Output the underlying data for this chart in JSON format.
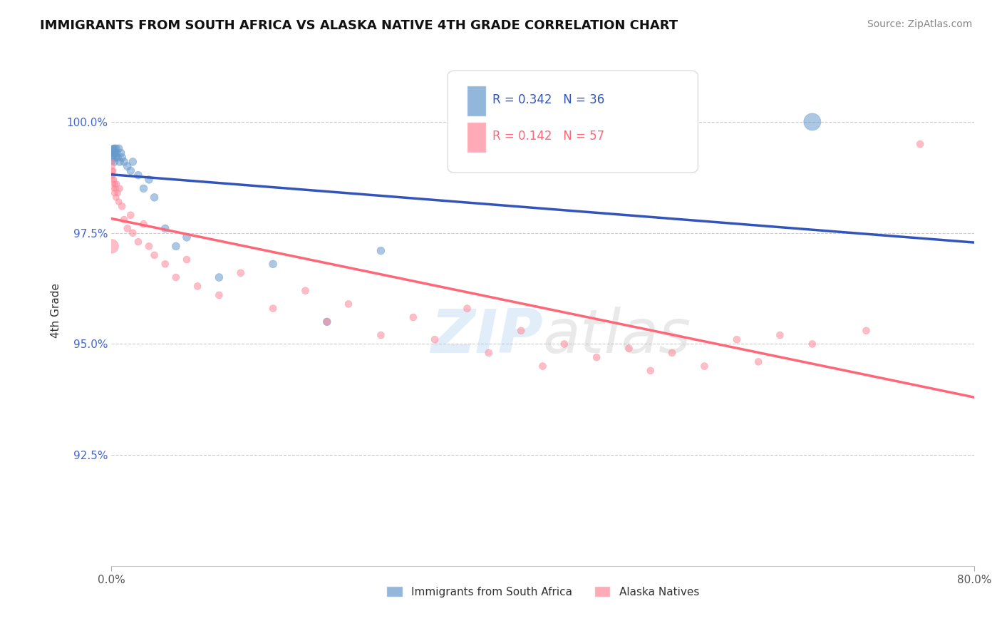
{
  "title": "IMMIGRANTS FROM SOUTH AFRICA VS ALASKA NATIVE 4TH GRADE CORRELATION CHART",
  "source": "Source: ZipAtlas.com",
  "ylabel": "4th Grade",
  "xlim": [
    0.0,
    80.0
  ],
  "ylim": [
    90.0,
    101.5
  ],
  "yticks": [
    92.5,
    95.0,
    97.5,
    100.0
  ],
  "xticklabels": [
    "0.0%",
    "80.0%"
  ],
  "yticklabels": [
    "92.5%",
    "95.0%",
    "97.5%",
    "100.0%"
  ],
  "blue_label": "Immigrants from South Africa",
  "pink_label": "Alaska Natives",
  "blue_R": 0.342,
  "blue_N": 36,
  "pink_R": 0.142,
  "pink_N": 57,
  "blue_color": "#6699CC",
  "pink_color": "#FF8899",
  "blue_line_color": "#3355BB",
  "pink_line_color": "#FF6677",
  "background_color": "#FFFFFF",
  "watermark_zip": "ZIP",
  "watermark_atlas": "atlas",
  "blue_points": [
    [
      0.08,
      99.3
    ],
    [
      0.1,
      99.1
    ],
    [
      0.12,
      99.3
    ],
    [
      0.15,
      99.2
    ],
    [
      0.17,
      99.4
    ],
    [
      0.18,
      99.3
    ],
    [
      0.2,
      99.4
    ],
    [
      0.22,
      99.2
    ],
    [
      0.25,
      99.3
    ],
    [
      0.28,
      99.4
    ],
    [
      0.3,
      99.1
    ],
    [
      0.35,
      99.3
    ],
    [
      0.4,
      99.2
    ],
    [
      0.45,
      99.4
    ],
    [
      0.5,
      99.3
    ],
    [
      0.6,
      99.2
    ],
    [
      0.7,
      99.4
    ],
    [
      0.8,
      99.1
    ],
    [
      0.9,
      99.3
    ],
    [
      1.0,
      99.2
    ],
    [
      1.2,
      99.1
    ],
    [
      1.5,
      99.0
    ],
    [
      1.8,
      98.9
    ],
    [
      2.0,
      99.1
    ],
    [
      2.5,
      98.8
    ],
    [
      3.0,
      98.5
    ],
    [
      3.5,
      98.7
    ],
    [
      4.0,
      98.3
    ],
    [
      5.0,
      97.6
    ],
    [
      6.0,
      97.2
    ],
    [
      7.0,
      97.4
    ],
    [
      10.0,
      96.5
    ],
    [
      15.0,
      96.8
    ],
    [
      20.0,
      95.5
    ],
    [
      25.0,
      97.1
    ],
    [
      65.0,
      100.0
    ]
  ],
  "pink_points": [
    [
      0.05,
      99.1
    ],
    [
      0.08,
      98.8
    ],
    [
      0.1,
      99.0
    ],
    [
      0.12,
      98.9
    ],
    [
      0.15,
      98.7
    ],
    [
      0.18,
      98.8
    ],
    [
      0.2,
      98.6
    ],
    [
      0.22,
      98.9
    ],
    [
      0.25,
      98.5
    ],
    [
      0.28,
      98.7
    ],
    [
      0.3,
      98.4
    ],
    [
      0.35,
      98.6
    ],
    [
      0.4,
      98.5
    ],
    [
      0.45,
      98.3
    ],
    [
      0.5,
      98.6
    ],
    [
      0.6,
      98.4
    ],
    [
      0.7,
      98.2
    ],
    [
      0.8,
      98.5
    ],
    [
      1.0,
      98.1
    ],
    [
      1.2,
      97.8
    ],
    [
      1.5,
      97.6
    ],
    [
      1.8,
      97.9
    ],
    [
      2.0,
      97.5
    ],
    [
      2.5,
      97.3
    ],
    [
      3.0,
      97.7
    ],
    [
      3.5,
      97.2
    ],
    [
      4.0,
      97.0
    ],
    [
      5.0,
      96.8
    ],
    [
      6.0,
      96.5
    ],
    [
      7.0,
      96.9
    ],
    [
      8.0,
      96.3
    ],
    [
      10.0,
      96.1
    ],
    [
      12.0,
      96.6
    ],
    [
      15.0,
      95.8
    ],
    [
      18.0,
      96.2
    ],
    [
      20.0,
      95.5
    ],
    [
      22.0,
      95.9
    ],
    [
      25.0,
      95.2
    ],
    [
      28.0,
      95.6
    ],
    [
      30.0,
      95.1
    ],
    [
      33.0,
      95.8
    ],
    [
      35.0,
      94.8
    ],
    [
      38.0,
      95.3
    ],
    [
      40.0,
      94.5
    ],
    [
      42.0,
      95.0
    ],
    [
      45.0,
      94.7
    ],
    [
      48.0,
      94.9
    ],
    [
      50.0,
      94.4
    ],
    [
      52.0,
      94.8
    ],
    [
      55.0,
      94.5
    ],
    [
      58.0,
      95.1
    ],
    [
      60.0,
      94.6
    ],
    [
      62.0,
      95.2
    ],
    [
      65.0,
      95.0
    ],
    [
      70.0,
      95.3
    ],
    [
      75.0,
      99.5
    ],
    [
      0.03,
      97.2
    ]
  ],
  "blue_sizes": [
    30,
    30,
    30,
    30,
    30,
    50,
    50,
    50,
    60,
    60,
    60,
    60,
    60,
    60,
    60,
    60,
    60,
    60,
    60,
    60,
    60,
    60,
    60,
    60,
    60,
    60,
    60,
    60,
    60,
    60,
    60,
    60,
    60,
    60,
    60,
    300
  ],
  "pink_sizes": [
    30,
    30,
    30,
    30,
    30,
    30,
    30,
    30,
    30,
    30,
    40,
    40,
    40,
    40,
    40,
    40,
    40,
    40,
    50,
    50,
    50,
    50,
    50,
    50,
    50,
    50,
    50,
    50,
    50,
    50,
    50,
    50,
    50,
    50,
    50,
    50,
    50,
    50,
    50,
    50,
    50,
    50,
    50,
    50,
    50,
    50,
    50,
    50,
    50,
    50,
    50,
    50,
    50,
    50,
    50,
    50,
    200
  ]
}
